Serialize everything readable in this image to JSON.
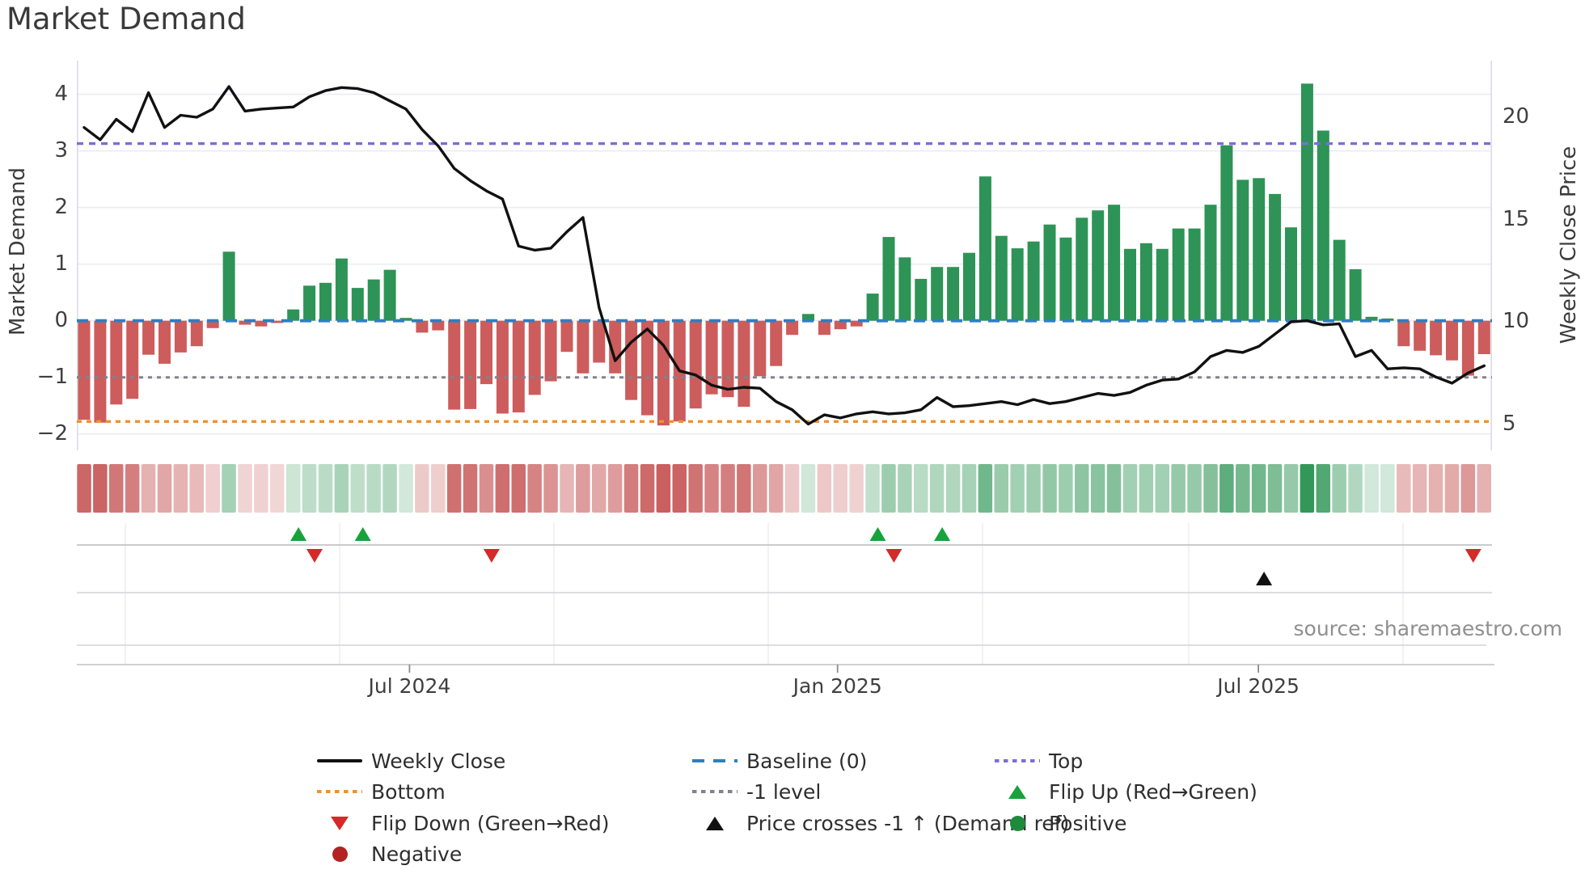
{
  "title": "Market Demand",
  "left_axis": {
    "label": "Market Demand",
    "ticks": [
      {
        "v": 4,
        "label": "4"
      },
      {
        "v": 3,
        "label": "3"
      },
      {
        "v": 2,
        "label": "2"
      },
      {
        "v": 1,
        "label": "1"
      },
      {
        "v": 0,
        "label": "0"
      },
      {
        "v": -1,
        "label": "−1"
      },
      {
        "v": -2,
        "label": "−2"
      }
    ]
  },
  "right_axis": {
    "label": "Weekly Close Price",
    "ticks": [
      {
        "p": 20,
        "label": "20"
      },
      {
        "p": 15,
        "label": "15"
      },
      {
        "p": 10,
        "label": "10"
      },
      {
        "p": 5,
        "label": "5"
      }
    ]
  },
  "x_axis": {
    "ticks": [
      {
        "week": 16.9,
        "label": "Jul 2024"
      },
      {
        "week": 43.5,
        "label": "Jan 2025"
      },
      {
        "week": 69.65,
        "label": "Jul 2025"
      }
    ]
  },
  "source": "source: sharemaestro.com",
  "colors": {
    "bar_positive": "#2e9356",
    "bar_negative": "#cd5c5c",
    "price_line": "#111111",
    "baseline_line": "#2e7fbe",
    "top_line": "#7d6ed4",
    "bottom_line": "#f0922c",
    "minus1_line": "#82828c",
    "flip_up": "#17a23b",
    "flip_down": "#d42a2a",
    "price_cross": "#111111",
    "positive_dot": "#1e8b3c",
    "negative_dot": "#b22222",
    "grid": "#eaecf1",
    "spine": "#d9dce2",
    "row_line": "#c4c4c8",
    "row_grid": "#ededf2",
    "strip_red_rgb": "196,78,78",
    "strip_green_rgb": "40,145,80"
  },
  "chart_data": {
    "type": "bar+line",
    "title": "Market Demand",
    "x_unit": "week_index",
    "ylabel_left": "Market Demand",
    "ylabel_right": "Weekly Close Price",
    "ylim_left": [
      -2.3,
      4.6
    ],
    "legend_position": "bottom",
    "grid": "horizontal",
    "demand_bars": [
      -1.75,
      -1.8,
      -1.48,
      -1.38,
      -0.6,
      -0.76,
      -0.56,
      -0.45,
      -0.13,
      1.22,
      -0.07,
      -0.1,
      -0.04,
      0.2,
      0.62,
      0.67,
      1.1,
      0.58,
      0.73,
      0.9,
      0.05,
      -0.21,
      -0.17,
      -1.57,
      -1.56,
      -1.12,
      -1.64,
      -1.62,
      -1.31,
      -1.07,
      -0.55,
      -0.93,
      -0.74,
      -0.93,
      -1.4,
      -1.67,
      -1.85,
      -1.78,
      -1.55,
      -1.3,
      -1.35,
      -1.52,
      -0.98,
      -0.8,
      -0.25,
      0.12,
      -0.25,
      -0.15,
      -0.1,
      0.48,
      1.48,
      1.12,
      0.74,
      0.95,
      0.95,
      1.2,
      2.55,
      1.5,
      1.28,
      1.4,
      1.7,
      1.47,
      1.82,
      1.95,
      2.05,
      1.27,
      1.37,
      1.27,
      1.63,
      1.63,
      2.05,
      3.1,
      2.49,
      2.52,
      2.24,
      1.65,
      4.19,
      3.36,
      1.43,
      0.91,
      0.07,
      0.04,
      -0.45,
      -0.53,
      -0.61,
      -0.7,
      -0.97,
      -0.59
    ],
    "weekly_close": [
      19.5,
      18.9,
      19.9,
      19.3,
      21.2,
      19.5,
      20.1,
      20.0,
      20.4,
      21.5,
      20.3,
      20.4,
      20.45,
      20.5,
      21.0,
      21.3,
      21.45,
      21.4,
      21.2,
      20.8,
      20.4,
      19.4,
      18.6,
      17.5,
      16.9,
      16.4,
      16.0,
      13.7,
      13.5,
      13.6,
      14.4,
      15.1,
      10.7,
      8.1,
      9.0,
      9.65,
      8.85,
      7.6,
      7.4,
      6.9,
      6.7,
      6.8,
      6.75,
      6.1,
      5.7,
      5.0,
      5.45,
      5.3,
      5.5,
      5.6,
      5.5,
      5.55,
      5.7,
      6.3,
      5.85,
      5.9,
      6.0,
      6.1,
      5.95,
      6.2,
      6.0,
      6.1,
      6.3,
      6.5,
      6.4,
      6.55,
      6.9,
      7.15,
      7.2,
      7.55,
      8.3,
      8.6,
      8.5,
      8.8,
      9.4,
      10.0,
      10.05,
      9.85,
      9.9,
      8.3,
      8.6,
      7.7,
      7.75,
      7.7,
      7.3,
      7.0,
      7.5,
      7.85
    ],
    "levels": {
      "baseline": 0,
      "top": 3.13,
      "bottom": -1.78,
      "minus1": -1
    },
    "flip_up_weeks": [
      10,
      14,
      46,
      50
    ],
    "flip_down_weeks": [
      11,
      22,
      47,
      83
    ],
    "price_cross_weeks": [
      70
    ],
    "heat_strip": "demand_bars color-mapped red(negative) to green(positive)"
  },
  "legend": {
    "items": [
      {
        "label": "Weekly Close",
        "type": "line-solid",
        "color": "#111111"
      },
      {
        "label": "Baseline (0)",
        "type": "line-dashed",
        "color": "#2e7fbe"
      },
      {
        "label": "Top",
        "type": "line-dotted",
        "color": "#7d6ed4"
      },
      {
        "label": "Bottom",
        "type": "line-dotted",
        "color": "#f0922c"
      },
      {
        "label": "-1 level",
        "type": "line-dotted",
        "color": "#82828c"
      },
      {
        "label": "Flip Up (Red→Green)",
        "type": "tri-up",
        "color": "#17a23b"
      },
      {
        "label": "Flip Down (Green→Red)",
        "type": "tri-down",
        "color": "#d42a2a"
      },
      {
        "label": "Price crosses -1 ↑ (Demand ref)",
        "type": "tri-up",
        "color": "#111111"
      },
      {
        "label": "Positive",
        "type": "dot",
        "color": "#1e8b3c"
      },
      {
        "label": "Negative",
        "type": "dot",
        "color": "#b22222"
      }
    ]
  }
}
